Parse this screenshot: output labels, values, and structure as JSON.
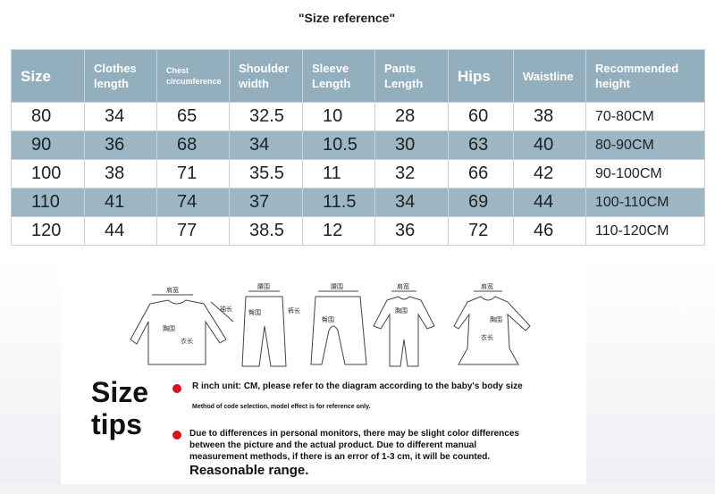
{
  "title": "\"Size reference\"",
  "table": {
    "headers": [
      "Size",
      "Clothes length",
      "Chest circumference",
      "Shoulder width",
      "Sleeve Length",
      "Pants Length",
      "Hips",
      "Waistline",
      "Recommended height"
    ],
    "rows": [
      [
        "80",
        "34",
        "65",
        "32.5",
        "10",
        "28",
        "60",
        "38",
        "70-80CM"
      ],
      [
        "90",
        "36",
        "68",
        "34",
        "10.5",
        "30",
        "63",
        "40",
        "80-90CM"
      ],
      [
        "100",
        "38",
        "71",
        "35.5",
        "11",
        "32",
        "66",
        "42",
        "90-100CM"
      ],
      [
        "110",
        "41",
        "74",
        "37",
        "11.5",
        "34",
        "69",
        "44",
        "100-110CM"
      ],
      [
        "120",
        "44",
        "77",
        "38.5",
        "12",
        "36",
        "72",
        "46",
        "110-120CM"
      ]
    ]
  },
  "diagram_labels": {
    "shoulder": "肩宽",
    "sleeve": "袖长",
    "chest": "胸围",
    "length": "衣长",
    "waist": "腰围",
    "pants": "裤长",
    "hip": "臀围"
  },
  "tips": {
    "heading_1": "Size",
    "heading_2": "tips",
    "line1": "R inch unit: CM, please refer to the diagram according to the baby's body size",
    "line1_sub": "Method of code selection, model effect is for reference only.",
    "line2": "Due to differences in personal monitors, there may be slight color differences between the picture and the actual product. Due to different manual measurement methods, if there is an error of 1-3 cm, it will be counted.",
    "line3": "Reasonable range."
  },
  "colors": {
    "header": "#93aebd",
    "alt_row": "#9cb6c4",
    "bullet": "#d9111b"
  }
}
